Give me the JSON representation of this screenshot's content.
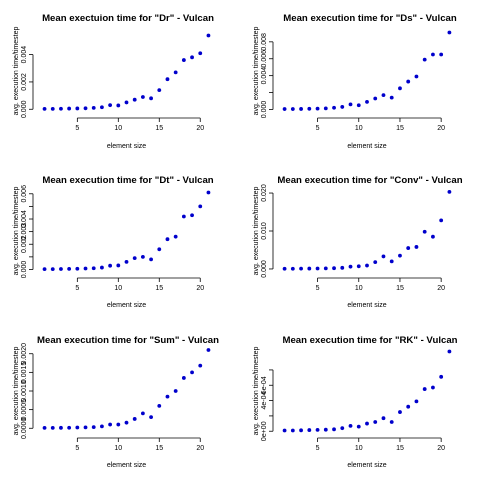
{
  "colors": {
    "points": "#0000cc",
    "axes": "#000000",
    "background": "#ffffff"
  },
  "chart_data": [
    {
      "type": "scatter",
      "title": "Mean exectuion time for \"Dr\" - Vulcan",
      "xlabel": "element size",
      "ylabel": "avg. execution time/timestep",
      "xlim": [
        0.2,
        21.8
      ],
      "ylim": [
        -0.0002,
        0.0058
      ],
      "xticks": [
        5,
        10,
        15,
        20
      ],
      "xtick_labels": [
        "5",
        "10",
        "15",
        "20"
      ],
      "yticks": [
        0,
        0.002,
        0.004
      ],
      "ytick_labels": [
        "0.000",
        "0.002",
        "0.004"
      ],
      "series": [
        {
          "x": [
            1,
            2,
            3,
            4,
            5,
            6,
            7,
            8,
            9,
            10,
            11,
            12,
            13,
            14,
            15,
            16,
            17,
            18,
            19,
            20,
            21
          ],
          "y": [
            3e-05,
            3e-05,
            4e-05,
            5e-05,
            6e-05,
            7e-05,
            0.0001,
            0.00015,
            0.0003,
            0.00028,
            0.0005,
            0.0007,
            0.0009,
            0.0008,
            0.0014,
            0.0022,
            0.0027,
            0.0036,
            0.0038,
            0.0041,
            0.0054
          ]
        }
      ]
    },
    {
      "type": "scatter",
      "title": "Mean execution time for \"Ds\" - Vulcan",
      "xlabel": "element size",
      "ylabel": "avg. execution time/timestep",
      "xlim": [
        0.2,
        21.8
      ],
      "ylim": [
        -0.0003,
        0.0094
      ],
      "xticks": [
        5,
        10,
        15,
        20
      ],
      "xtick_labels": [
        "5",
        "10",
        "15",
        "20"
      ],
      "yticks": [
        0,
        0.002,
        0.004,
        0.006,
        0.008
      ],
      "ytick_labels": [
        "0.000",
        "",
        "0.004",
        "0.006",
        "0.008"
      ],
      "series": [
        {
          "x": [
            1,
            2,
            3,
            4,
            5,
            6,
            7,
            8,
            9,
            10,
            11,
            12,
            13,
            14,
            15,
            16,
            17,
            18,
            19,
            20,
            21
          ],
          "y": [
            5e-05,
            5e-05,
            6e-05,
            8e-05,
            0.0001,
            0.00013,
            0.0002,
            0.0003,
            0.0006,
            0.0005,
            0.0009,
            0.0013,
            0.0017,
            0.0014,
            0.0025,
            0.0033,
            0.0039,
            0.0059,
            0.0065,
            0.0065,
            0.0091
          ]
        }
      ]
    },
    {
      "type": "scatter",
      "title": "Mean execution time for \"Dt\" - Vulcan",
      "xlabel": "element size",
      "ylabel": "avg. execution time/timestep",
      "xlim": [
        0.2,
        21.8
      ],
      "ylim": [
        -0.0002,
        0.0063
      ],
      "xticks": [
        5,
        10,
        15,
        20
      ],
      "xtick_labels": [
        "5",
        "10",
        "15",
        "20"
      ],
      "yticks": [
        0,
        0.001,
        0.002,
        0.003,
        0.004,
        0.005,
        0.006
      ],
      "ytick_labels": [
        "0.000",
        "",
        "0.002",
        "0.003",
        "0.004",
        "",
        "0.006"
      ],
      "series": [
        {
          "x": [
            1,
            2,
            3,
            4,
            5,
            6,
            7,
            8,
            9,
            10,
            11,
            12,
            13,
            14,
            15,
            16,
            17,
            18,
            19,
            20,
            21
          ],
          "y": [
            3e-05,
            3e-05,
            4e-05,
            5e-05,
            6e-05,
            8e-05,
            0.0001,
            0.00015,
            0.0003,
            0.00032,
            0.0006,
            0.0009,
            0.001,
            0.0008,
            0.0016,
            0.0024,
            0.0026,
            0.0042,
            0.0043,
            0.005,
            0.0061
          ]
        }
      ]
    },
    {
      "type": "scatter",
      "title": "Mean execution time for \"Conv\" - Vulcan",
      "xlabel": "element size",
      "ylabel": "avg. execution time/timestep",
      "xlim": [
        0.2,
        21.8
      ],
      "ylim": [
        -0.0008,
        0.0208
      ],
      "xticks": [
        5,
        10,
        15,
        20
      ],
      "xtick_labels": [
        "5",
        "10",
        "15",
        "20"
      ],
      "yticks": [
        0,
        0.01,
        0.02
      ],
      "ytick_labels": [
        "0.000",
        "0.010",
        "0.020"
      ],
      "series": [
        {
          "x": [
            1,
            2,
            3,
            4,
            5,
            6,
            7,
            8,
            9,
            10,
            11,
            12,
            13,
            14,
            15,
            16,
            17,
            18,
            19,
            20,
            21
          ],
          "y": [
            5e-05,
            6e-05,
            8e-05,
            0.0001,
            0.00012,
            0.00015,
            0.0002,
            0.0003,
            0.0006,
            0.0007,
            0.0009,
            0.0018,
            0.0033,
            0.002,
            0.0035,
            0.0055,
            0.0058,
            0.0098,
            0.0085,
            0.0128,
            0.0203
          ]
        }
      ]
    },
    {
      "type": "scatter",
      "title": "Mean execution time for \"Sum\" - Vulcan",
      "xlabel": "element size",
      "ylabel": "avg. execution time/timestep",
      "xlim": [
        0.2,
        21.8
      ],
      "ylim": [
        -0.0001,
        0.0021
      ],
      "xticks": [
        5,
        10,
        15,
        20
      ],
      "xtick_labels": [
        "5",
        "10",
        "15",
        "20"
      ],
      "yticks": [
        0,
        0.0005,
        0.001,
        0.0015,
        0.002
      ],
      "ytick_labels": [
        "0.0000",
        "0.0005",
        "0.0010",
        "0.0015",
        "0.0020"
      ],
      "series": [
        {
          "x": [
            1,
            2,
            3,
            4,
            5,
            6,
            7,
            8,
            9,
            10,
            11,
            12,
            13,
            14,
            15,
            16,
            17,
            18,
            19,
            20,
            21
          ],
          "y": [
            1e-05,
            1e-05,
            1.2e-05,
            1.5e-05,
            2e-05,
            2.5e-05,
            3e-05,
            5e-05,
            0.0001,
            0.0001,
            0.00015,
            0.00025,
            0.0004,
            0.0003,
            0.0006,
            0.00085,
            0.001,
            0.00135,
            0.0015,
            0.00168,
            0.0021
          ]
        }
      ]
    },
    {
      "type": "scatter",
      "title": "Mean execution time for \"RK\" - Vulcan",
      "xlabel": "element size",
      "ylabel": "avg. execution time/timestep",
      "xlim": [
        0.2,
        21.8
      ],
      "ylim": [
        -1e-05,
        0.00106
      ],
      "xticks": [
        5,
        10,
        15,
        20
      ],
      "xtick_labels": [
        "5",
        "10",
        "15",
        "20"
      ],
      "yticks": [
        0,
        0.0002,
        0.0004,
        0.0006,
        0.0008
      ],
      "ytick_labels": [
        "0e+00",
        "",
        "4e-04",
        "6e-04",
        ""
      ],
      "series": [
        {
          "x": [
            1,
            2,
            3,
            4,
            5,
            6,
            7,
            8,
            9,
            10,
            11,
            12,
            13,
            14,
            15,
            16,
            17,
            18,
            19,
            20,
            21
          ],
          "y": [
            1e-05,
            1e-05,
            1.2e-05,
            1.5e-05,
            1.8e-05,
            2e-05,
            2.5e-05,
            4e-05,
            7e-05,
            6e-05,
            0.0001,
            0.00012,
            0.00017,
            0.00012,
            0.00025,
            0.00032,
            0.00039,
            0.00055,
            0.00057,
            0.00071,
            0.00104
          ]
        }
      ]
    }
  ]
}
